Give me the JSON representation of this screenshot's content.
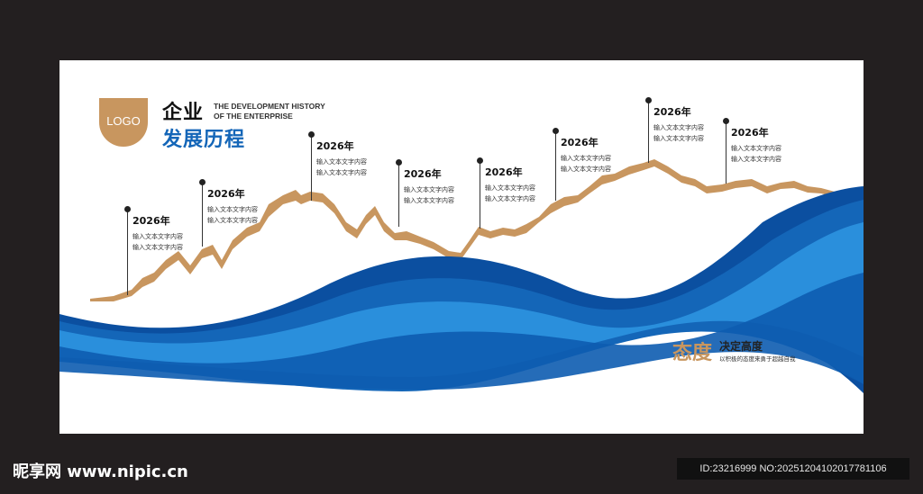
{
  "header": {
    "logo_label": "LOGO",
    "title_line1": "企业",
    "title_line2": "发展历程",
    "title_en_line1": "THE DEVELOPMENT HISTORY",
    "title_en_line2": "OF THE ENTERPRISE"
  },
  "milestones": [
    {
      "year": "2026年",
      "line1": "输入文本文字内容",
      "line2": "输入文本文字内容"
    },
    {
      "year": "2026年",
      "line1": "输入文本文字内容",
      "line2": "输入文本文字内容"
    },
    {
      "year": "2026年",
      "line1": "输入文本文字内容",
      "line2": "输入文本文字内容"
    },
    {
      "year": "2026年",
      "line1": "输入文本文字内容",
      "line2": "输入文本文字内容"
    },
    {
      "year": "2026年",
      "line1": "输入文本文字内容",
      "line2": "输入文本文字内容"
    },
    {
      "year": "2026年",
      "line1": "输入文本文字内容",
      "line2": "输入文本文字内容"
    },
    {
      "year": "2026年",
      "line1": "输入文本文字内容",
      "line2": "输入文本文字内容"
    },
    {
      "year": "2026年",
      "line1": "输入文本文字内容",
      "line2": "输入文本文字内容"
    }
  ],
  "attitude": {
    "big": "态度",
    "title": "决定高度",
    "subtitle": "以积极的态度来勇于超越自我"
  },
  "watermark": {
    "left": "昵享网 www.nipic.cn",
    "right": "ID:23216999 NO:20251204102017781106"
  },
  "colors": {
    "background": "#231f20",
    "panel": "#ffffff",
    "gold": "#c8965f",
    "blue_dark": "#0b4fa0",
    "blue_mid": "#1466b8",
    "blue_light": "#2a8fdc"
  }
}
